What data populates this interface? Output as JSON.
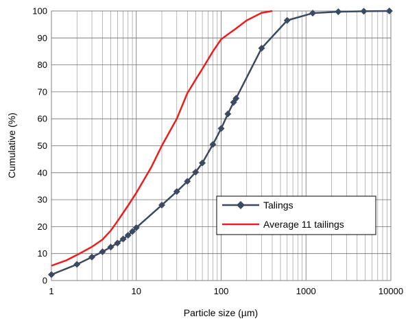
{
  "chart_data": {
    "type": "line",
    "xlabel": "Particle size (µm)",
    "ylabel": "Cumulative (%)",
    "x_scale": "log",
    "xlim": [
      1,
      10000
    ],
    "ylim": [
      0,
      100
    ],
    "x_ticks": [
      "1",
      "10",
      "100",
      "1000",
      "10000"
    ],
    "y_ticks": [
      "0",
      "10",
      "20",
      "30",
      "40",
      "50",
      "60",
      "70",
      "80",
      "90",
      "100"
    ],
    "grid": true,
    "legend_position": "lower-right",
    "series": [
      {
        "name": "Talings",
        "color": "#3b4a60",
        "marker": "diamond",
        "x": [
          1,
          2,
          3,
          4,
          5,
          6,
          7,
          8,
          9,
          10,
          20,
          30,
          40,
          50,
          60,
          80,
          100,
          120,
          140,
          150,
          300,
          600,
          1200,
          2400,
          4800,
          9600
        ],
        "y": [
          2.2,
          6.0,
          8.7,
          10.7,
          12.4,
          13.9,
          15.4,
          16.8,
          18.2,
          19.6,
          28.0,
          33.0,
          36.8,
          40.2,
          43.6,
          50.5,
          56.4,
          61.8,
          66.1,
          67.6,
          86.2,
          96.5,
          99.2,
          99.7,
          99.9,
          100.0
        ]
      },
      {
        "name": "Average 11 tailings",
        "color": "#ee1c1c",
        "marker": "none",
        "x": [
          1,
          1.5,
          2,
          3,
          4,
          5,
          6,
          8,
          10,
          15,
          20,
          30,
          40,
          50,
          60,
          80,
          100,
          150,
          200,
          300,
          400
        ],
        "y": [
          5.5,
          7.5,
          9.5,
          12.5,
          15.2,
          18.5,
          22.0,
          27.8,
          32.5,
          42.0,
          50.0,
          60.0,
          69.5,
          74.5,
          78.5,
          85.0,
          89.5,
          93.5,
          96.5,
          99.3,
          100.0
        ]
      }
    ]
  }
}
